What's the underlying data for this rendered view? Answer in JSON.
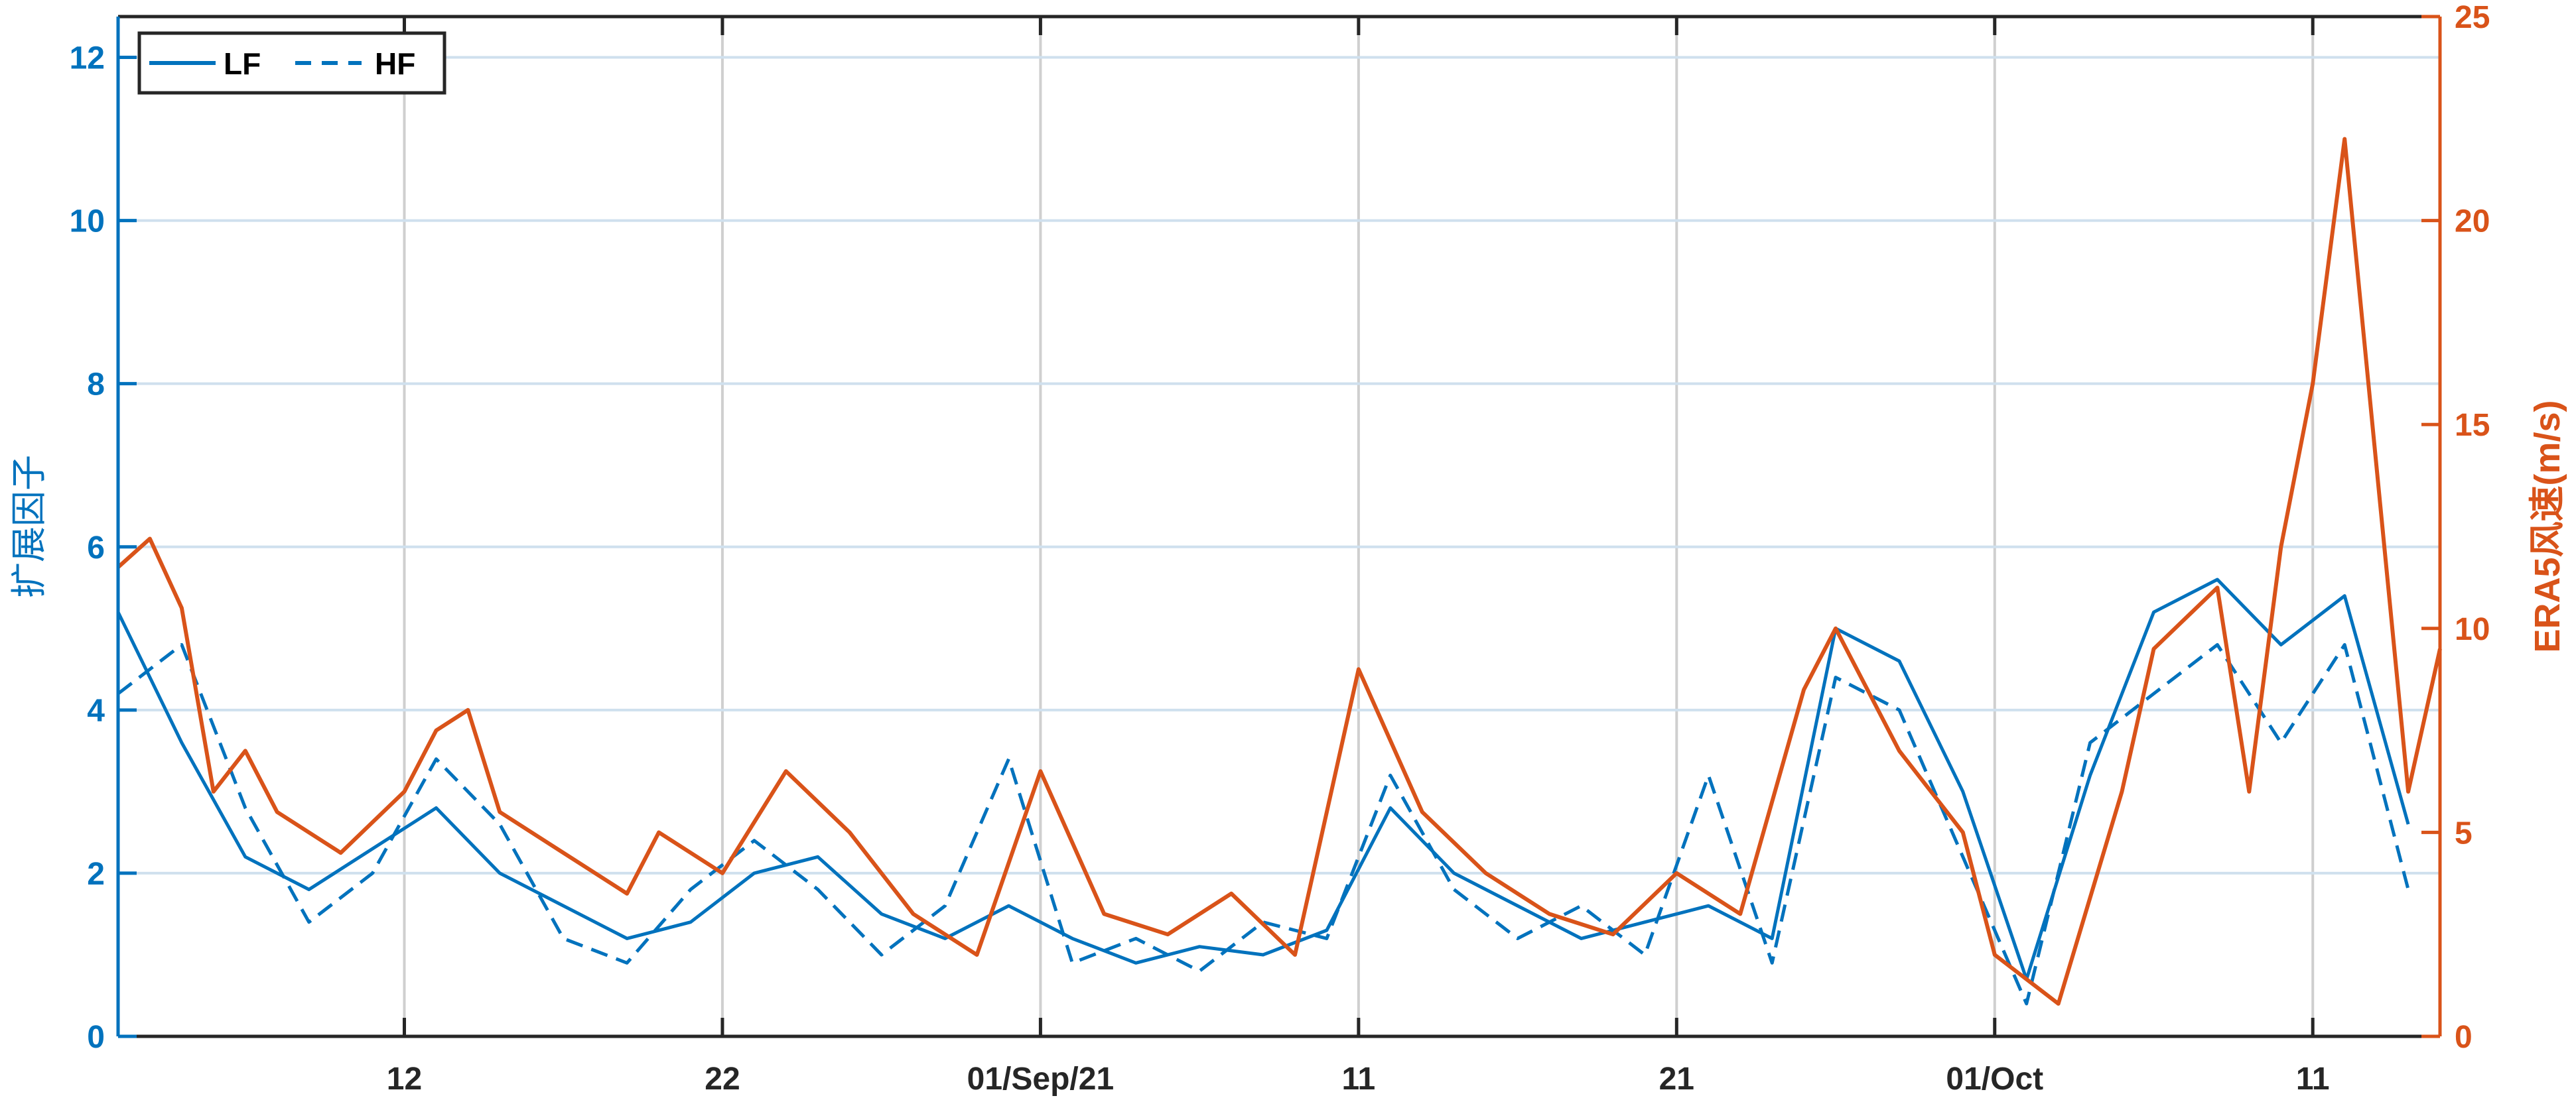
{
  "chart_data": {
    "type": "line",
    "title": "",
    "xlabel": "",
    "x_ticks": [
      "12",
      "22",
      "01/Sep/21",
      "11",
      "21",
      "01/Oct",
      "11"
    ],
    "x_range": [
      "2021-08-03",
      "2021-10-15"
    ],
    "ylabel_left": "扩展因子",
    "ylabel_right": "ERA5风速(m/s)",
    "ylim_left": [
      0,
      12.5
    ],
    "ylim_right": [
      0,
      25
    ],
    "yticks_left": [
      "0",
      "2",
      "4",
      "6",
      "8",
      "10",
      "12"
    ],
    "yticks_right": [
      "0",
      "5",
      "10",
      "15",
      "20",
      "25"
    ],
    "grid": true,
    "legend": {
      "placement": "top-left",
      "entries": [
        "LF",
        "HF"
      ]
    },
    "colors": {
      "left_axis": "#0072BD",
      "right_axis": "#D95319"
    },
    "series": [
      {
        "name": "LF",
        "axis": "left",
        "style": "solid",
        "x": [
          "2021-08-03",
          "2021-08-05",
          "2021-08-07",
          "2021-08-09",
          "2021-08-11",
          "2021-08-13",
          "2021-08-15",
          "2021-08-17",
          "2021-08-19",
          "2021-08-21",
          "2021-08-23",
          "2021-08-25",
          "2021-08-27",
          "2021-08-29",
          "2021-08-31",
          "2021-09-02",
          "2021-09-04",
          "2021-09-06",
          "2021-09-08",
          "2021-09-10",
          "2021-09-12",
          "2021-09-14",
          "2021-09-16",
          "2021-09-18",
          "2021-09-20",
          "2021-09-22",
          "2021-09-24",
          "2021-09-26",
          "2021-09-28",
          "2021-09-30",
          "2021-10-02",
          "2021-10-04",
          "2021-10-06",
          "2021-10-08",
          "2021-10-10",
          "2021-10-12",
          "2021-10-14"
        ],
        "y": [
          5.2,
          3.6,
          2.2,
          1.8,
          2.3,
          2.8,
          2.0,
          1.6,
          1.2,
          1.4,
          2.0,
          2.2,
          1.5,
          1.2,
          1.6,
          1.2,
          0.9,
          1.1,
          1.0,
          1.3,
          2.8,
          2.0,
          1.6,
          1.2,
          1.4,
          1.6,
          1.2,
          5.0,
          4.6,
          3.0,
          0.7,
          3.2,
          5.2,
          5.6,
          4.8,
          5.4,
          2.6
        ]
      },
      {
        "name": "HF",
        "axis": "left",
        "style": "dashed",
        "x": [
          "2021-08-03",
          "2021-08-05",
          "2021-08-07",
          "2021-08-09",
          "2021-08-11",
          "2021-08-13",
          "2021-08-15",
          "2021-08-17",
          "2021-08-19",
          "2021-08-21",
          "2021-08-23",
          "2021-08-25",
          "2021-08-27",
          "2021-08-29",
          "2021-08-31",
          "2021-09-02",
          "2021-09-04",
          "2021-09-06",
          "2021-09-08",
          "2021-09-10",
          "2021-09-12",
          "2021-09-14",
          "2021-09-16",
          "2021-09-18",
          "2021-09-20",
          "2021-09-22",
          "2021-09-24",
          "2021-09-26",
          "2021-09-28",
          "2021-09-30",
          "2021-10-02",
          "2021-10-04",
          "2021-10-06",
          "2021-10-08",
          "2021-10-10",
          "2021-10-12",
          "2021-10-14"
        ],
        "y": [
          4.2,
          4.8,
          2.8,
          1.4,
          2.0,
          3.4,
          2.6,
          1.2,
          0.9,
          1.8,
          2.4,
          1.8,
          1.0,
          1.6,
          3.4,
          0.9,
          1.2,
          0.8,
          1.4,
          1.2,
          3.2,
          1.8,
          1.2,
          1.6,
          1.0,
          3.2,
          0.9,
          4.4,
          4.0,
          2.2,
          0.4,
          3.6,
          4.2,
          4.8,
          3.6,
          4.8,
          1.8
        ]
      },
      {
        "name": "ERA5",
        "axis": "right",
        "style": "solid",
        "x": [
          "2021-08-03",
          "2021-08-04",
          "2021-08-05",
          "2021-08-06",
          "2021-08-07",
          "2021-08-08",
          "2021-08-10",
          "2021-08-12",
          "2021-08-13",
          "2021-08-14",
          "2021-08-15",
          "2021-08-17",
          "2021-08-19",
          "2021-08-20",
          "2021-08-22",
          "2021-08-24",
          "2021-08-26",
          "2021-08-28",
          "2021-08-30",
          "2021-09-01",
          "2021-09-03",
          "2021-09-05",
          "2021-09-07",
          "2021-09-09",
          "2021-09-11",
          "2021-09-13",
          "2021-09-15",
          "2021-09-17",
          "2021-09-19",
          "2021-09-21",
          "2021-09-23",
          "2021-09-25",
          "2021-09-26",
          "2021-09-28",
          "2021-09-30",
          "2021-10-01",
          "2021-10-03",
          "2021-10-05",
          "2021-10-06",
          "2021-10-08",
          "2021-10-09",
          "2021-10-10",
          "2021-10-11",
          "2021-10-12",
          "2021-10-13",
          "2021-10-14",
          "2021-10-15"
        ],
        "y": [
          11.5,
          12.2,
          10.5,
          6.0,
          7.0,
          5.5,
          4.5,
          6.0,
          7.5,
          8.0,
          5.5,
          4.5,
          3.5,
          5.0,
          4.0,
          6.5,
          5.0,
          3.0,
          2.0,
          6.5,
          3.0,
          2.5,
          3.5,
          2.0,
          9.0,
          5.5,
          4.0,
          3.0,
          2.5,
          4.0,
          3.0,
          8.5,
          10.0,
          7.0,
          5.0,
          2.0,
          0.8,
          6.0,
          9.5,
          11.0,
          6.0,
          12.0,
          16.0,
          22.0,
          14.0,
          6.0,
          9.5
        ]
      }
    ]
  }
}
